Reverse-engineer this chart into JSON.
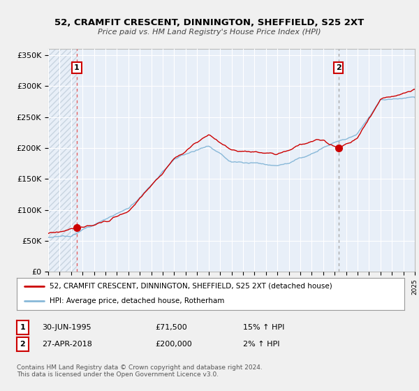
{
  "title": "52, CRAMFIT CRESCENT, DINNINGTON, SHEFFIELD, S25 2XT",
  "subtitle": "Price paid vs. HM Land Registry's House Price Index (HPI)",
  "legend_line1": "52, CRAMFIT CRESCENT, DINNINGTON, SHEFFIELD, S25 2XT (detached house)",
  "legend_line2": "HPI: Average price, detached house, Rotherham",
  "sale1_date": "30-JUN-1995",
  "sale1_price": "£71,500",
  "sale1_hpi": "15% ↑ HPI",
  "sale1_x": 1995.5,
  "sale1_y": 71500,
  "sale2_date": "27-APR-2018",
  "sale2_price": "£200,000",
  "sale2_hpi": "2% ↑ HPI",
  "sale2_x": 2018.33,
  "sale2_y": 200000,
  "footer": "Contains HM Land Registry data © Crown copyright and database right 2024.\nThis data is licensed under the Open Government Licence v3.0.",
  "yticks": [
    0,
    50000,
    100000,
    150000,
    200000,
    250000,
    300000,
    350000
  ],
  "ytick_labels": [
    "£0",
    "£50K",
    "£100K",
    "£150K",
    "£200K",
    "£250K",
    "£300K",
    "£350K"
  ],
  "xmin": 1993,
  "xmax": 2025,
  "ymin": 0,
  "ymax": 360000,
  "background_color": "#f0f0f0",
  "plot_bg_color": "#e8eff8",
  "hatch_color": "#c8d4e0",
  "line_red": "#cc0000",
  "line_blue": "#88b8d8",
  "marker_color": "#cc0000",
  "vline1_color": "#e06060",
  "vline2_color": "#aaaaaa",
  "annotation_box_color": "#cc0000",
  "grid_color": "#ffffff"
}
